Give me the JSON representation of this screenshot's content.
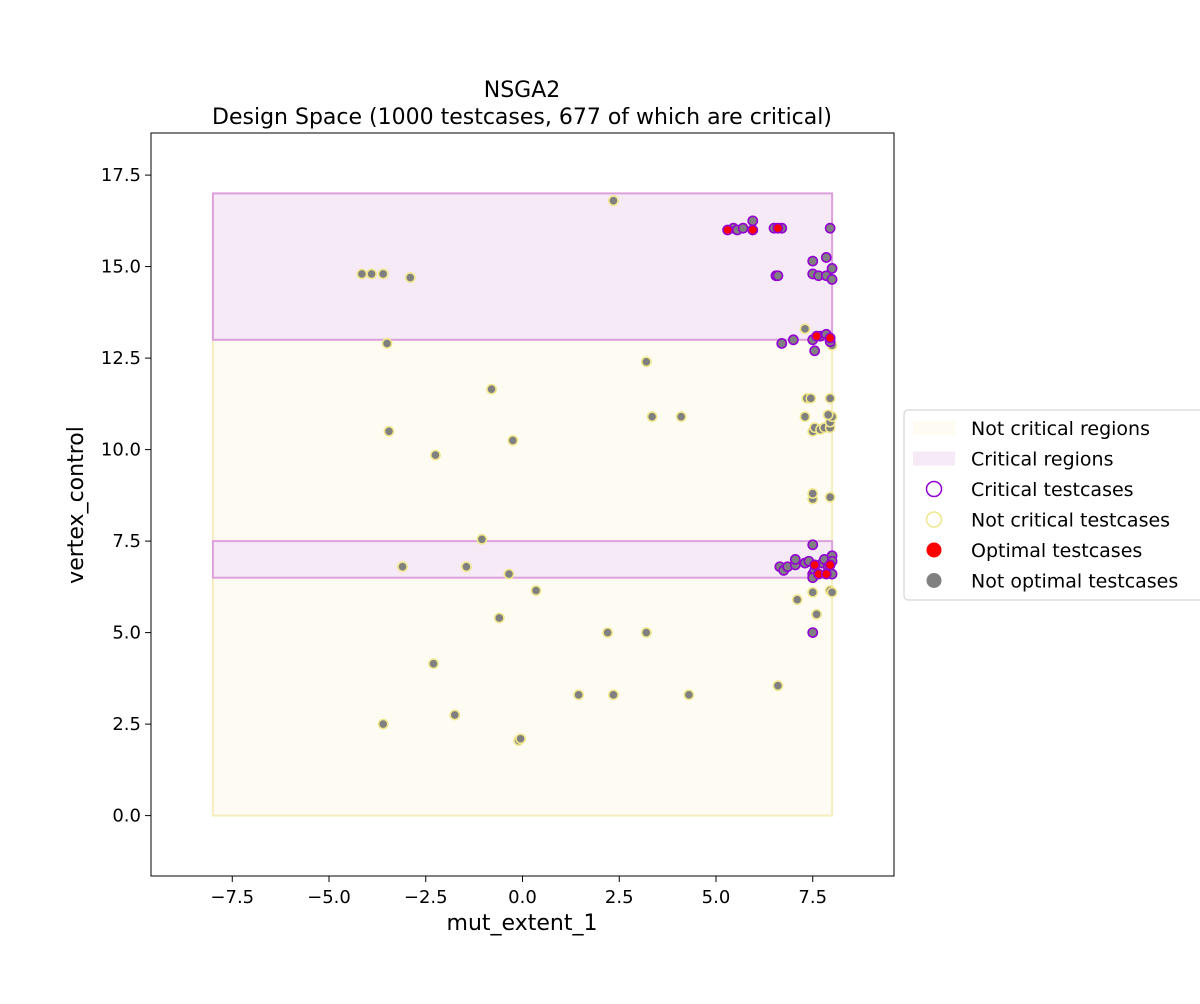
{
  "chart_data": {
    "type": "scatter",
    "title_line1": "NSGA2",
    "title_line2": "Design Space (1000 testcases, 677 of which are critical)",
    "xlabel": "mut_extent_1",
    "ylabel": "vertex_control",
    "xlim": [
      -9.6,
      9.6
    ],
    "ylim": [
      -1.65,
      18.65
    ],
    "xticks": [
      -7.5,
      -5.0,
      -2.5,
      0.0,
      2.5,
      5.0,
      7.5
    ],
    "xtick_labels": [
      "−7.5",
      "−5.0",
      "−2.5",
      "0.0",
      "2.5",
      "5.0",
      "7.5"
    ],
    "yticks": [
      0.0,
      2.5,
      5.0,
      7.5,
      10.0,
      12.5,
      15.0,
      17.5
    ],
    "ytick_labels": [
      "0.0",
      "2.5",
      "5.0",
      "7.5",
      "10.0",
      "12.5",
      "15.0",
      "17.5"
    ],
    "grid": false,
    "legend_position": "outside-right",
    "colors": {
      "critical_edge": "#9400d3",
      "not_critical_edge": "#f0e68c",
      "optimal": "#ff0000",
      "not_optimal": "#808080",
      "critical_region_fill": "#f5eaf5",
      "critical_region_edge": "#dda0dd",
      "not_critical_region_fill": "#fefcf2",
      "not_critical_region_edge": "#f5eec0"
    },
    "regions": [
      {
        "kind": "not_critical",
        "x": [
          -8,
          8
        ],
        "y": [
          0,
          13
        ]
      },
      {
        "kind": "critical",
        "x": [
          -8,
          8
        ],
        "y": [
          13,
          17
        ]
      },
      {
        "kind": "critical",
        "x": [
          -8,
          8
        ],
        "y": [
          6.5,
          7.5
        ]
      }
    ],
    "legend": [
      {
        "label": "Not critical regions",
        "marker": "not_critical_region"
      },
      {
        "label": "Critical regions",
        "marker": "critical_region"
      },
      {
        "label": "Critical testcases",
        "marker": "critical_testcase"
      },
      {
        "label": "Not critical testcases",
        "marker": "not_critical_testcase"
      },
      {
        "label": "Optimal testcases",
        "marker": "optimal_testcase"
      },
      {
        "label": "Not optimal testcases",
        "marker": "not_optimal_testcase"
      }
    ],
    "points": [
      {
        "x": 2.35,
        "y": 16.8,
        "critical": false,
        "optimal": false
      },
      {
        "x": -4.15,
        "y": 14.8,
        "critical": false,
        "optimal": false
      },
      {
        "x": -3.9,
        "y": 14.8,
        "critical": false,
        "optimal": false
      },
      {
        "x": -3.6,
        "y": 14.8,
        "critical": false,
        "optimal": false
      },
      {
        "x": -2.9,
        "y": 14.7,
        "critical": false,
        "optimal": false
      },
      {
        "x": -3.5,
        "y": 12.9,
        "critical": false,
        "optimal": false
      },
      {
        "x": 3.2,
        "y": 12.4,
        "critical": false,
        "optimal": false
      },
      {
        "x": -0.8,
        "y": 11.65,
        "critical": false,
        "optimal": false
      },
      {
        "x": 3.35,
        "y": 10.9,
        "critical": false,
        "optimal": false
      },
      {
        "x": 4.1,
        "y": 10.9,
        "critical": false,
        "optimal": false
      },
      {
        "x": -3.45,
        "y": 10.5,
        "critical": false,
        "optimal": false
      },
      {
        "x": -0.25,
        "y": 10.25,
        "critical": false,
        "optimal": false
      },
      {
        "x": -2.25,
        "y": 9.85,
        "critical": false,
        "optimal": false
      },
      {
        "x": -1.05,
        "y": 7.55,
        "critical": false,
        "optimal": false
      },
      {
        "x": -3.1,
        "y": 6.8,
        "critical": false,
        "optimal": false
      },
      {
        "x": -1.45,
        "y": 6.8,
        "critical": false,
        "optimal": false
      },
      {
        "x": -0.35,
        "y": 6.6,
        "critical": false,
        "optimal": false
      },
      {
        "x": 0.35,
        "y": 6.15,
        "critical": false,
        "optimal": false
      },
      {
        "x": -0.6,
        "y": 5.4,
        "critical": false,
        "optimal": false
      },
      {
        "x": 2.2,
        "y": 5.0,
        "critical": false,
        "optimal": false
      },
      {
        "x": 3.2,
        "y": 5.0,
        "critical": false,
        "optimal": false
      },
      {
        "x": -2.3,
        "y": 4.15,
        "critical": false,
        "optimal": false
      },
      {
        "x": 1.45,
        "y": 3.3,
        "critical": false,
        "optimal": false
      },
      {
        "x": 2.35,
        "y": 3.3,
        "critical": false,
        "optimal": false
      },
      {
        "x": 4.3,
        "y": 3.3,
        "critical": false,
        "optimal": false
      },
      {
        "x": 6.6,
        "y": 3.55,
        "critical": false,
        "optimal": false
      },
      {
        "x": -1.75,
        "y": 2.75,
        "critical": false,
        "optimal": false
      },
      {
        "x": -3.6,
        "y": 2.5,
        "critical": false,
        "optimal": false
      },
      {
        "x": -0.1,
        "y": 2.05,
        "critical": false,
        "optimal": false
      },
      {
        "x": -0.05,
        "y": 2.1,
        "critical": false,
        "optimal": false
      },
      {
        "x": 7.1,
        "y": 5.9,
        "critical": false,
        "optimal": false
      },
      {
        "x": 7.6,
        "y": 5.5,
        "critical": false,
        "optimal": false
      },
      {
        "x": 7.5,
        "y": 6.1,
        "critical": false,
        "optimal": false
      },
      {
        "x": 7.95,
        "y": 6.15,
        "critical": false,
        "optimal": false
      },
      {
        "x": 8.0,
        "y": 6.1,
        "critical": false,
        "optimal": false
      },
      {
        "x": 7.5,
        "y": 8.65,
        "critical": false,
        "optimal": false
      },
      {
        "x": 7.5,
        "y": 8.8,
        "critical": false,
        "optimal": false
      },
      {
        "x": 7.95,
        "y": 8.7,
        "critical": false,
        "optimal": false
      },
      {
        "x": 7.5,
        "y": 10.5,
        "critical": false,
        "optimal": false
      },
      {
        "x": 7.55,
        "y": 10.6,
        "critical": false,
        "optimal": false
      },
      {
        "x": 7.7,
        "y": 10.55,
        "critical": false,
        "optimal": false
      },
      {
        "x": 7.8,
        "y": 10.6,
        "critical": false,
        "optimal": false
      },
      {
        "x": 7.95,
        "y": 10.6,
        "critical": false,
        "optimal": false
      },
      {
        "x": 7.95,
        "y": 10.75,
        "critical": false,
        "optimal": false
      },
      {
        "x": 8.0,
        "y": 10.9,
        "critical": false,
        "optimal": false
      },
      {
        "x": 7.3,
        "y": 10.9,
        "critical": false,
        "optimal": false
      },
      {
        "x": 7.9,
        "y": 10.95,
        "critical": false,
        "optimal": false
      },
      {
        "x": 7.35,
        "y": 11.4,
        "critical": false,
        "optimal": false
      },
      {
        "x": 7.45,
        "y": 11.4,
        "critical": false,
        "optimal": false
      },
      {
        "x": 7.95,
        "y": 11.4,
        "critical": false,
        "optimal": false
      },
      {
        "x": 7.3,
        "y": 13.3,
        "critical": false,
        "optimal": false
      },
      {
        "x": 8.0,
        "y": 12.85,
        "critical": false,
        "optimal": false
      },
      {
        "x": 5.3,
        "y": 16.0,
        "critical": true,
        "optimal": true
      },
      {
        "x": 5.45,
        "y": 16.05,
        "critical": true,
        "optimal": false
      },
      {
        "x": 5.55,
        "y": 16.0,
        "critical": true,
        "optimal": false
      },
      {
        "x": 5.7,
        "y": 16.05,
        "critical": true,
        "optimal": false
      },
      {
        "x": 5.95,
        "y": 16.0,
        "critical": true,
        "optimal": true
      },
      {
        "x": 5.95,
        "y": 16.25,
        "critical": true,
        "optimal": false
      },
      {
        "x": 6.5,
        "y": 16.05,
        "critical": true,
        "optimal": false
      },
      {
        "x": 6.6,
        "y": 16.05,
        "critical": true,
        "optimal": true
      },
      {
        "x": 6.7,
        "y": 16.05,
        "critical": true,
        "optimal": false
      },
      {
        "x": 7.95,
        "y": 16.05,
        "critical": true,
        "optimal": false
      },
      {
        "x": 6.55,
        "y": 14.75,
        "critical": true,
        "optimal": false
      },
      {
        "x": 6.6,
        "y": 14.75,
        "critical": true,
        "optimal": false
      },
      {
        "x": 7.5,
        "y": 15.15,
        "critical": true,
        "optimal": false
      },
      {
        "x": 7.85,
        "y": 15.25,
        "critical": true,
        "optimal": false
      },
      {
        "x": 7.5,
        "y": 14.8,
        "critical": true,
        "optimal": false
      },
      {
        "x": 7.65,
        "y": 14.75,
        "critical": true,
        "optimal": false
      },
      {
        "x": 7.85,
        "y": 14.75,
        "critical": true,
        "optimal": false
      },
      {
        "x": 8.0,
        "y": 14.95,
        "critical": true,
        "optimal": false
      },
      {
        "x": 8.0,
        "y": 14.65,
        "critical": true,
        "optimal": false
      },
      {
        "x": 7.5,
        "y": 13.0,
        "critical": true,
        "optimal": false
      },
      {
        "x": 7.6,
        "y": 13.1,
        "critical": true,
        "optimal": true
      },
      {
        "x": 7.7,
        "y": 13.1,
        "critical": true,
        "optimal": false
      },
      {
        "x": 7.85,
        "y": 13.15,
        "critical": true,
        "optimal": false
      },
      {
        "x": 7.95,
        "y": 13.05,
        "critical": true,
        "optimal": true
      },
      {
        "x": 7.95,
        "y": 12.95,
        "critical": true,
        "optimal": false
      },
      {
        "x": 7.0,
        "y": 13.0,
        "critical": true,
        "optimal": false
      },
      {
        "x": 6.7,
        "y": 12.9,
        "critical": true,
        "optimal": false
      },
      {
        "x": 7.55,
        "y": 12.7,
        "critical": true,
        "optimal": false
      },
      {
        "x": 7.5,
        "y": 7.4,
        "critical": true,
        "optimal": false
      },
      {
        "x": 6.65,
        "y": 6.8,
        "critical": true,
        "optimal": false
      },
      {
        "x": 6.75,
        "y": 6.7,
        "critical": true,
        "optimal": false
      },
      {
        "x": 6.85,
        "y": 6.8,
        "critical": true,
        "optimal": false
      },
      {
        "x": 7.05,
        "y": 6.85,
        "critical": true,
        "optimal": false
      },
      {
        "x": 7.05,
        "y": 7.0,
        "critical": true,
        "optimal": false
      },
      {
        "x": 7.3,
        "y": 6.9,
        "critical": true,
        "optimal": false
      },
      {
        "x": 7.4,
        "y": 6.95,
        "critical": true,
        "optimal": false
      },
      {
        "x": 7.5,
        "y": 6.6,
        "critical": true,
        "optimal": false
      },
      {
        "x": 7.55,
        "y": 6.7,
        "critical": true,
        "optimal": false
      },
      {
        "x": 7.55,
        "y": 6.85,
        "critical": true,
        "optimal": true
      },
      {
        "x": 7.65,
        "y": 6.6,
        "critical": true,
        "optimal": true
      },
      {
        "x": 7.75,
        "y": 6.9,
        "critical": true,
        "optimal": false
      },
      {
        "x": 7.8,
        "y": 7.0,
        "critical": true,
        "optimal": false
      },
      {
        "x": 7.85,
        "y": 6.6,
        "critical": true,
        "optimal": true
      },
      {
        "x": 7.9,
        "y": 6.8,
        "critical": true,
        "optimal": false
      },
      {
        "x": 7.95,
        "y": 6.85,
        "critical": true,
        "optimal": true
      },
      {
        "x": 8.0,
        "y": 7.1,
        "critical": true,
        "optimal": false
      },
      {
        "x": 8.0,
        "y": 6.95,
        "critical": true,
        "optimal": false
      },
      {
        "x": 8.0,
        "y": 6.6,
        "critical": true,
        "optimal": false
      },
      {
        "x": 7.5,
        "y": 6.5,
        "critical": true,
        "optimal": false
      },
      {
        "x": 7.5,
        "y": 5.0,
        "critical": true,
        "optimal": false
      }
    ]
  }
}
